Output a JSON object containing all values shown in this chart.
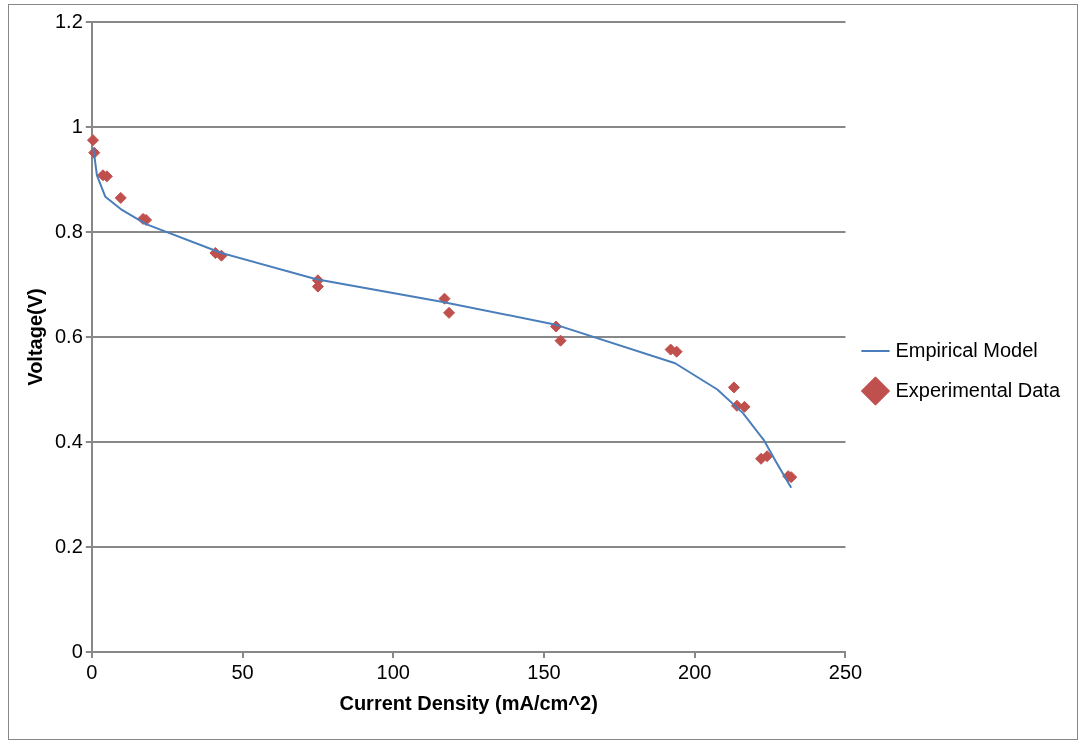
{
  "chart_data": {
    "type": "scatter",
    "xlabel": "Current Density (mA/cm^2)",
    "ylabel": "Voltage(V)",
    "xlim": [
      0,
      250
    ],
    "xticks": [
      0,
      50,
      100,
      150,
      200,
      250
    ],
    "ylim": [
      0,
      1.2
    ],
    "yticks": [
      0,
      0.2,
      0.4,
      0.6,
      0.8,
      1,
      1.2
    ],
    "grid": "y",
    "legend": "right",
    "series": [
      {
        "name": "Empirical Model",
        "type": "line",
        "color": "#4a7ebb",
        "marker": "none",
        "x": [
          0.5,
          1.7,
          4.5,
          10,
          18,
          43,
          74.5,
          116,
          153.5,
          193.5,
          207.5,
          216,
          223,
          227,
          232
        ],
        "values": [
          0.96,
          0.908,
          0.867,
          0.842,
          0.815,
          0.76,
          0.71,
          0.667,
          0.624,
          0.55,
          0.5,
          0.455,
          0.403,
          0.362,
          0.313
        ]
      },
      {
        "name": "Experimental Data",
        "type": "scatter",
        "color": "#c0504d",
        "marker": "diamond",
        "x": [
          0.4,
          0.8,
          3.7,
          5,
          9.6,
          17,
          18,
          41,
          43,
          75,
          75,
          117,
          118.5,
          154,
          155.5,
          192,
          194,
          213,
          214,
          216.5,
          222,
          224,
          231,
          232
        ],
        "values": [
          0.975,
          0.951,
          0.908,
          0.906,
          0.865,
          0.825,
          0.823,
          0.76,
          0.755,
          0.708,
          0.696,
          0.673,
          0.646,
          0.62,
          0.593,
          0.576,
          0.572,
          0.504,
          0.469,
          0.467,
          0.368,
          0.373,
          0.335,
          0.333
        ]
      }
    ]
  }
}
